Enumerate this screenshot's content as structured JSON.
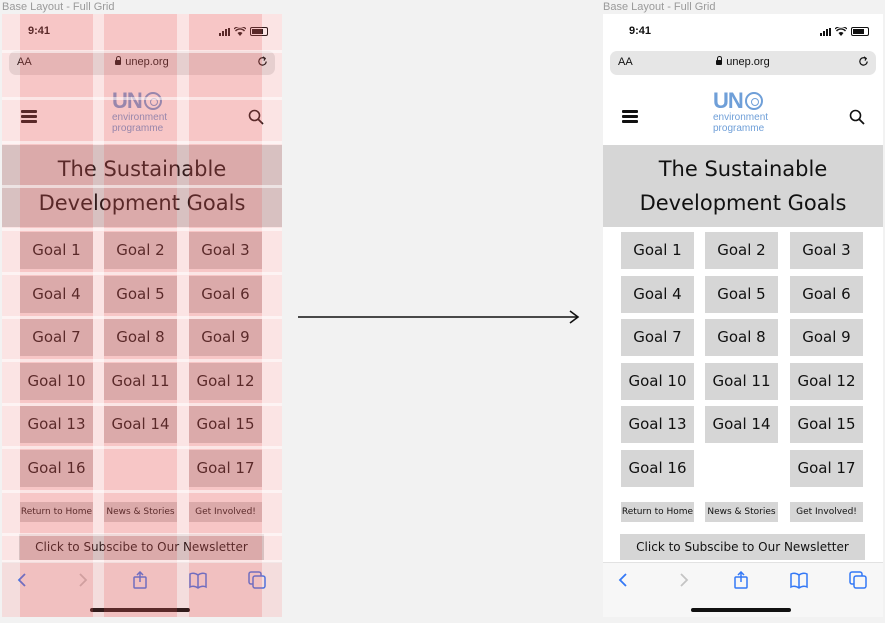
{
  "frames": {
    "left_label": "Base Layout - Full Grid",
    "right_label": "Base Layout - Full Grid"
  },
  "status": {
    "time": "9:41"
  },
  "browser": {
    "text_size_label": "AA",
    "url": "unep.org"
  },
  "logo": {
    "line1": "UN",
    "line2": "environment",
    "line3": "programme"
  },
  "hero": {
    "line1": "The Sustainable",
    "line2": "Development Goals"
  },
  "goals": [
    "Goal 1",
    "Goal 2",
    "Goal 3",
    "Goal 4",
    "Goal 5",
    "Goal 6",
    "Goal 7",
    "Goal 8",
    "Goal 9",
    "Goal 10",
    "Goal 11",
    "Goal 12",
    "Goal 13",
    "Goal 14",
    "Goal 15",
    "Goal 16",
    "Goal 17"
  ],
  "links": {
    "home": "Return to Home",
    "news": "News & Stories",
    "involved": "Get Involved!"
  },
  "newsletter": "Click to Subscibe to Our Newsletter",
  "colors": {
    "overlay": "#e85a5a",
    "tile": "#d6d6d6",
    "logo_blue": "#6f9fd8",
    "toolbar_blue": "#3478f6"
  },
  "icons": [
    "back-icon",
    "forward-icon",
    "share-icon",
    "bookmarks-icon",
    "tabs-icon",
    "search-icon",
    "hamburger-icon",
    "reload-icon",
    "lock-icon",
    "arrow-right-icon"
  ]
}
